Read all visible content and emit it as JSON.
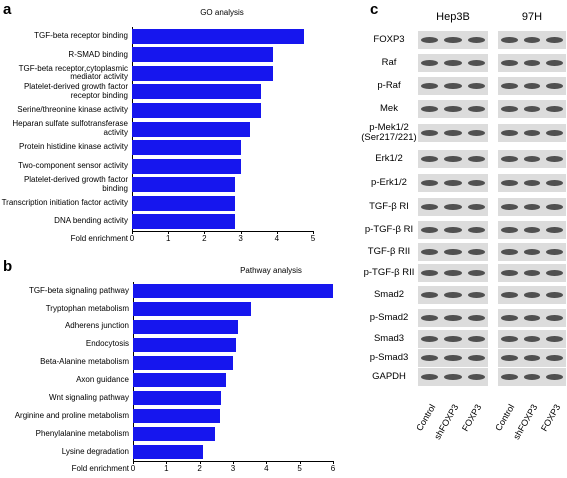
{
  "panel_labels": [
    "a",
    "b",
    "c"
  ],
  "chart_data": [
    {
      "type": "bar",
      "orientation": "horizontal",
      "title": "GO analysis",
      "xlabel": "Fold enrichment",
      "color": "#1616ee",
      "categories": [
        "TGF-beta receptor binding",
        "R-SMAD binding",
        "TGF-beta receptor,cytoplasmic mediator activity",
        "Platelet-derived growth factor receptor binding",
        "Serine/threonine kinase activity",
        "Heparan sulfate sulfotransferase activity",
        "Protein histidine kinase activity",
        "Two-component sensor activity",
        "Platelet-derived growth factor binding",
        "Transcription initiation factor activity",
        "DNA bending activity"
      ],
      "values": [
        4.75,
        3.9,
        3.9,
        3.55,
        3.55,
        3.25,
        3.0,
        3.0,
        2.85,
        2.85,
        2.85
      ],
      "xlim": [
        0,
        5
      ],
      "xticks": [
        0,
        1,
        2,
        3,
        4,
        5
      ]
    },
    {
      "type": "bar",
      "orientation": "horizontal",
      "title": "Pathway analysis",
      "xlabel": "Fold enrichment",
      "color": "#1616ee",
      "categories": [
        "TGF-beta signaling pathway",
        "Tryptophan metabolism",
        "Adherens junction",
        "Endocytosis",
        "Beta-Alanine metabolism",
        "Axon guidance",
        "Wnt signaling pathway",
        "Arginine and proline metabolism",
        "Phenylalanine metabolism",
        "Lysine degradation"
      ],
      "values": [
        6.0,
        3.55,
        3.15,
        3.1,
        3.0,
        2.8,
        2.65,
        2.6,
        2.45,
        2.1
      ],
      "xlim": [
        0,
        6
      ],
      "xticks": [
        0,
        1,
        2,
        3,
        4,
        5,
        6
      ]
    }
  ],
  "blot": {
    "cell_lines": [
      {
        "name": "Hep3B",
        "lanes": [
          "Control",
          "shFOXP3",
          "FOXP3"
        ]
      },
      {
        "name": "97H",
        "lanes": [
          "Control",
          "shFOXP3",
          "FOXP3"
        ]
      }
    ],
    "rows": [
      "FOXP3",
      "Raf",
      "p-Raf",
      "Mek",
      "p-Mek1/2 (Ser217/221)",
      "Erk1/2",
      "p-Erk1/2",
      "TGF-β RI",
      "p-TGF-β RI",
      "TGF-β RII",
      "p-TGF-β RII",
      "Smad2",
      "p-Smad2",
      "Smad3",
      "p-Smad3",
      "GAPDH"
    ]
  }
}
